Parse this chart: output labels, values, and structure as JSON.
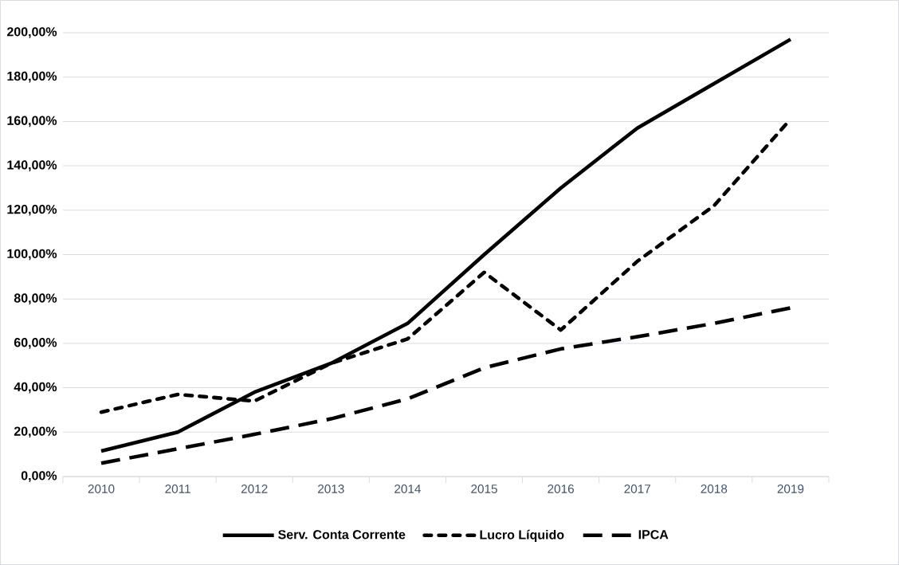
{
  "chart_data": {
    "type": "line",
    "categories": [
      "2010",
      "2011",
      "2012",
      "2013",
      "2014",
      "2015",
      "2016",
      "2017",
      "2018",
      "2019"
    ],
    "series": [
      {
        "name": "Serv. Conta Corrente",
        "color": "#000000",
        "line_style": "solid",
        "values": [
          11.5,
          20,
          38,
          51,
          69,
          100,
          130,
          157,
          177,
          197
        ]
      },
      {
        "name": "Lucro Líquido",
        "color": "#000000",
        "line_style": "dotted",
        "values": [
          29,
          37,
          34,
          51,
          62,
          92,
          66,
          97,
          122,
          161
        ]
      },
      {
        "name": "IPCA",
        "color": "#000000",
        "line_style": "dashed",
        "values": [
          6,
          12.5,
          19,
          26,
          35,
          49,
          57.5,
          63,
          69,
          76
        ]
      }
    ],
    "ylim": [
      0,
      200
    ],
    "yticks": [
      {
        "value": 0,
        "label": "0,00%"
      },
      {
        "value": 20,
        "label": "20,00%"
      },
      {
        "value": 40,
        "label": "40,00%"
      },
      {
        "value": 60,
        "label": "60,00%"
      },
      {
        "value": 80,
        "label": "80,00%"
      },
      {
        "value": 100,
        "label": "100,00%"
      },
      {
        "value": 120,
        "label": "120,00%"
      },
      {
        "value": 140,
        "label": "140,00%"
      },
      {
        "value": 160,
        "label": "160,00%"
      },
      {
        "value": 180,
        "label": "180,00%"
      },
      {
        "value": 200,
        "label": "200,00%"
      }
    ],
    "grid": "y",
    "legend": "bottom",
    "marker": "none"
  }
}
